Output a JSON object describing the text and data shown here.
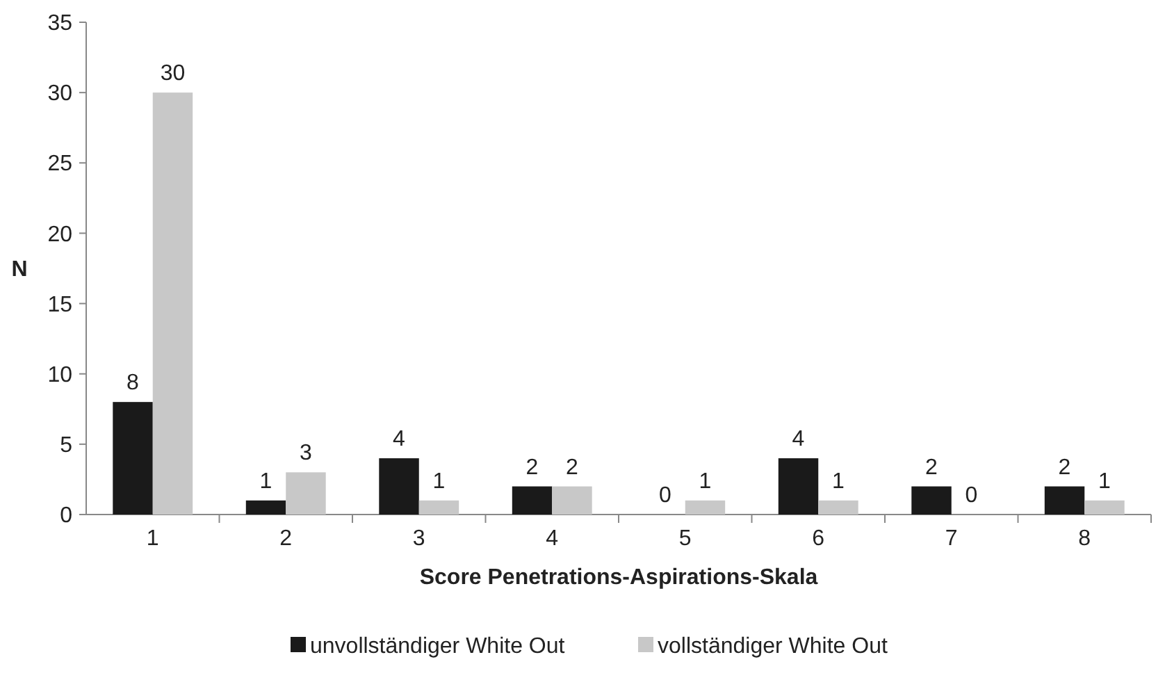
{
  "chart_data": {
    "type": "bar",
    "xlabel": "Score Penetrations-Aspirations-Skala",
    "ylabel": "N",
    "categories": [
      "1",
      "2",
      "3",
      "4",
      "5",
      "6",
      "7",
      "8"
    ],
    "series": [
      {
        "name": "unvollständiger White Out",
        "color": "#1a1a1a",
        "values": [
          8,
          1,
          4,
          2,
          0,
          4,
          2,
          2
        ]
      },
      {
        "name": "vollständiger White Out",
        "color": "#c8c8c8",
        "values": [
          30,
          3,
          1,
          2,
          1,
          1,
          0,
          1
        ]
      }
    ],
    "ylim": [
      0,
      35
    ],
    "yticks": [
      0,
      5,
      10,
      15,
      20,
      25,
      30,
      35
    ],
    "data_labels": true,
    "grid": false,
    "legend": "bottom"
  }
}
